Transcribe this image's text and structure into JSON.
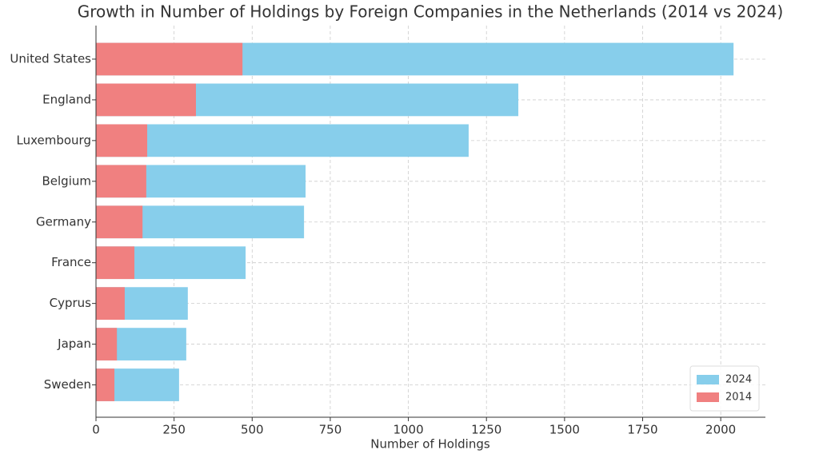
{
  "chart_data": {
    "type": "barh_overlay",
    "title": "Growth in Number of Holdings by Foreign Companies in the Netherlands (2014 vs 2024)",
    "x_label": "Number of Holdings",
    "categories": [
      "United States",
      "England",
      "Luxembourg",
      "Belgium",
      "Germany",
      "France",
      "Cyprus",
      "Japan",
      "Sweden"
    ],
    "series": [
      {
        "name": "2024",
        "color": "#87ceeb",
        "values": [
          2041,
          1352,
          1193,
          671,
          666,
          479,
          294,
          289,
          266
        ]
      },
      {
        "name": "2014",
        "color": "#f08080",
        "values": [
          469,
          320,
          164,
          161,
          149,
          123,
          92,
          67,
          59
        ]
      }
    ],
    "xlim": [
      0,
      2143
    ],
    "xticks": [
      0,
      250,
      500,
      750,
      1000,
      1250,
      1500,
      1750,
      2000
    ],
    "grid": true,
    "legend": "lower right"
  }
}
